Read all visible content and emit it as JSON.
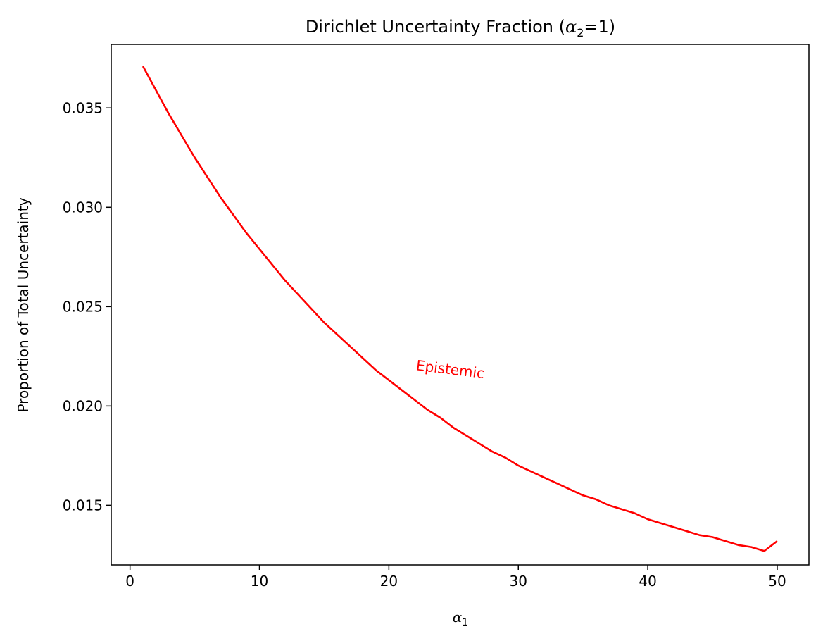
{
  "chart_data": {
    "type": "line",
    "title_prefix": "Dirichlet Uncertainty Fraction (",
    "title_symbol": "α",
    "title_subscript": "2",
    "title_suffix": "=1)",
    "xlabel_symbol": "α",
    "xlabel_subscript": "1",
    "ylabel": "Proportion of Total Uncertainty",
    "xlim": [
      -1.45,
      52.45
    ],
    "ylim": [
      0.012,
      0.0382
    ],
    "xticks": [
      0,
      10,
      20,
      30,
      40,
      50
    ],
    "xtick_labels": [
      "0",
      "10",
      "20",
      "30",
      "40",
      "50"
    ],
    "yticks": [
      0.015,
      0.02,
      0.025,
      0.03,
      0.035
    ],
    "ytick_labels": [
      "0.015",
      "0.020",
      "0.025",
      "0.030",
      "0.035"
    ],
    "grid": false,
    "series": [
      {
        "color": "#ff0000",
        "x": [
          1,
          2,
          3,
          4,
          5,
          6,
          7,
          8,
          9,
          10,
          11,
          12,
          13,
          14,
          15,
          16,
          17,
          18,
          19,
          20,
          21,
          22,
          23,
          24,
          25,
          26,
          27,
          28,
          29,
          30,
          31,
          32,
          33,
          34,
          35,
          36,
          37,
          38,
          39,
          40,
          41,
          42,
          43,
          44,
          45,
          46,
          47,
          48,
          49,
          50
        ],
        "y": [
          0.0371,
          0.0359,
          0.0347,
          0.0336,
          0.0325,
          0.0315,
          0.0305,
          0.0296,
          0.0287,
          0.0279,
          0.0271,
          0.0263,
          0.0256,
          0.0249,
          0.0242,
          0.0236,
          0.023,
          0.0224,
          0.0218,
          0.0213,
          0.0208,
          0.0203,
          0.0198,
          0.0194,
          0.0189,
          0.0185,
          0.0181,
          0.0177,
          0.0174,
          0.017,
          0.0167,
          0.0164,
          0.0161,
          0.0158,
          0.0155,
          0.0153,
          0.015,
          0.0148,
          0.0146,
          0.0143,
          0.0141,
          0.0139,
          0.0137,
          0.0135,
          0.0134,
          0.0132,
          0.013,
          0.0129,
          0.0127,
          0.0132
        ]
      }
    ],
    "annotations": [
      {
        "text": "Epistemic",
        "x": 24.7,
        "y": 0.0216,
        "color": "#ff0000",
        "rotation": 7
      }
    ]
  }
}
